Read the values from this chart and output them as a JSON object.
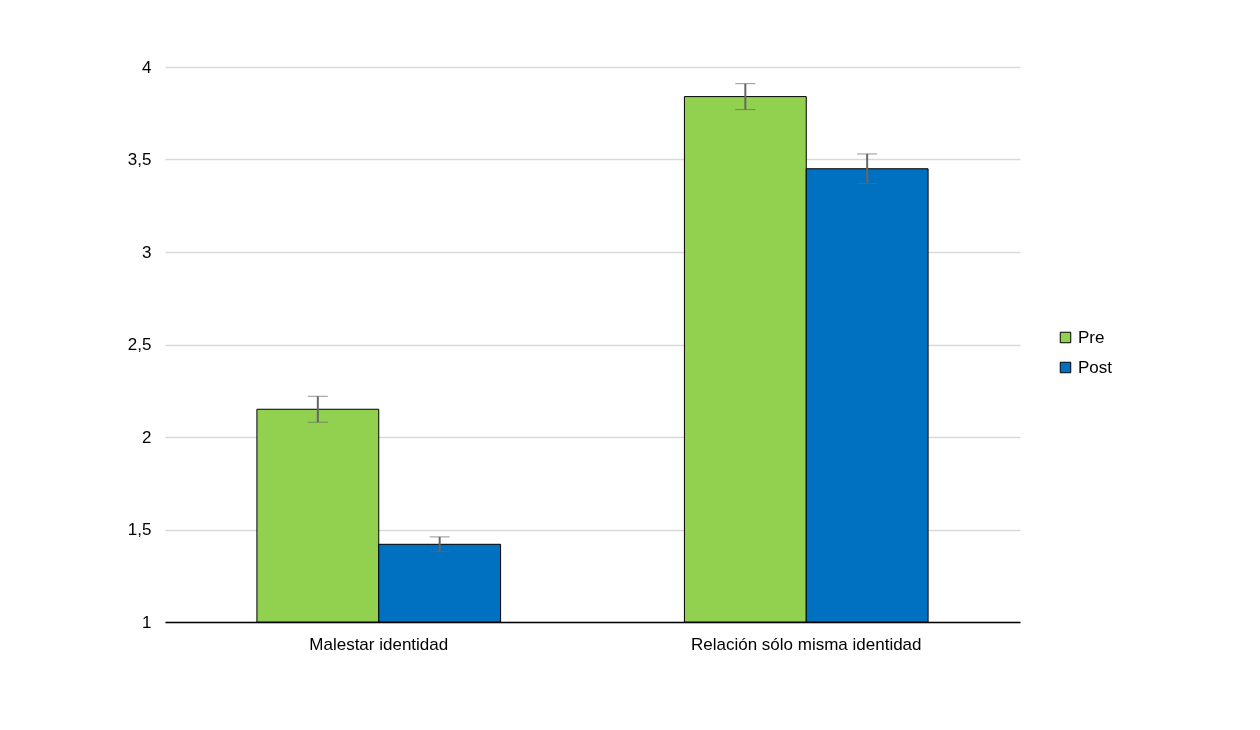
{
  "chart_data": {
    "type": "bar",
    "categories": [
      "Malestar identidad",
      "Relación sólo misma identidad"
    ],
    "series": [
      {
        "name": "Pre",
        "color": "#92d050",
        "values": [
          2.15,
          3.84
        ],
        "errors": [
          0.07,
          0.07
        ]
      },
      {
        "name": "Post",
        "color": "#0070c0",
        "values": [
          1.42,
          3.45
        ],
        "errors": [
          0.04,
          0.08
        ]
      }
    ],
    "ylim": [
      1,
      4
    ],
    "yticks": [
      1,
      {
        "value": 1.5,
        "label": "1,5"
      },
      2,
      {
        "value": 2.5,
        "label": "2,5"
      },
      3,
      {
        "value": 3.5,
        "label": "3,5"
      },
      4
    ],
    "grid": "y",
    "legend": "right"
  }
}
